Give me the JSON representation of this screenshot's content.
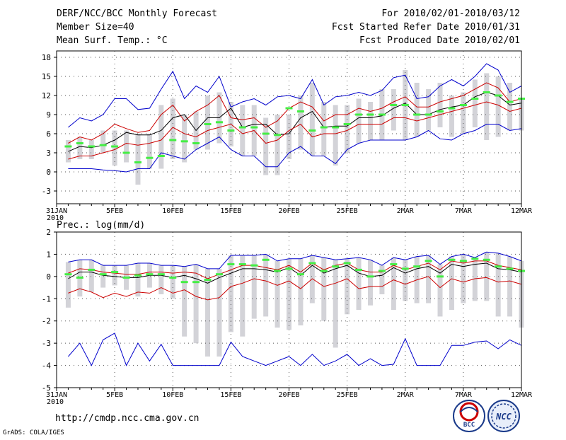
{
  "header": {
    "left": [
      "DERF/NCC/BCC Monthly Forecast",
      "Member Size=40",
      "Mean Surf. Temp.: °C"
    ],
    "right": [
      "For 2010/02/01-2010/03/12",
      "Fcst Started Refer Date 2010/01/31",
      "Fcst Produced Date 2010/02/01"
    ]
  },
  "footer": {
    "url": "http://cmdp.ncc.cma.gov.cn",
    "credit": "GrADS: COLA/IGES",
    "logo1": "BCC",
    "logo2": "NCC"
  },
  "chart_data": [
    {
      "type": "line",
      "title": "Mean Surf. Temp.: °C",
      "xlabel": "",
      "ylabel": "",
      "ylim": [
        -5,
        19
      ],
      "yticks": [
        -3,
        0,
        3,
        6,
        9,
        12,
        15,
        18
      ],
      "xticks": [
        {
          "day": 0,
          "label": "31JAN"
        },
        {
          "day": 5,
          "label": "5FEB"
        },
        {
          "day": 10,
          "label": "10FEB"
        },
        {
          "day": 15,
          "label": "15FEB"
        },
        {
          "day": 20,
          "label": "20FEB"
        },
        {
          "day": 25,
          "label": "25FEB"
        },
        {
          "day": 30,
          "label": "2MAR"
        },
        {
          "day": 35,
          "label": "7MAR"
        },
        {
          "day": 40,
          "label": "12MAR"
        }
      ],
      "year_label": "2010",
      "days": [
        1,
        2,
        3,
        4,
        5,
        6,
        7,
        8,
        9,
        10,
        11,
        12,
        13,
        14,
        15,
        16,
        17,
        18,
        19,
        20,
        21,
        22,
        23,
        24,
        25,
        26,
        27,
        28,
        29,
        30,
        31,
        32,
        33,
        34,
        35,
        36,
        37,
        38,
        39,
        40
      ],
      "series": [
        {
          "name": "max",
          "color": "#0000cc",
          "values": [
            7,
            8.5,
            8,
            9,
            11.5,
            11.5,
            9.8,
            10,
            13,
            15.8,
            11.5,
            13.5,
            12.5,
            15,
            10.2,
            11,
            11.5,
            10.5,
            11.8,
            12,
            11.5,
            14.5,
            10.5,
            11.8,
            12,
            12.5,
            12,
            12.8,
            14.8,
            15.2,
            11.5,
            11.8,
            13.5,
            14.5,
            13.5,
            15,
            17,
            16,
            12.5,
            13.5
          ]
        },
        {
          "name": "upper",
          "color": "#cc0000",
          "values": [
            4.5,
            5.5,
            5,
            6,
            7.5,
            6.8,
            6.2,
            6.5,
            9,
            10.5,
            8,
            9.5,
            10.5,
            12,
            8.5,
            8.2,
            8.5,
            7,
            8,
            10,
            11,
            10.2,
            8,
            9,
            9,
            10,
            9.5,
            10,
            11,
            11.8,
            10.2,
            10.2,
            11,
            11.5,
            12,
            13,
            14,
            13.2,
            11,
            11.5
          ]
        },
        {
          "name": "mean",
          "color": "#000000",
          "values": [
            3.2,
            4,
            3.8,
            4.2,
            5,
            6.2,
            5.8,
            5.8,
            6.5,
            8.5,
            9,
            6.5,
            8.5,
            8.5,
            10,
            7,
            7.5,
            7.5,
            5.8,
            6,
            8.5,
            9.5,
            7,
            7.2,
            7.2,
            8.5,
            8.5,
            8.8,
            10,
            10.8,
            9,
            9,
            9.8,
            10.2,
            10.5,
            11.8,
            12.5,
            12,
            10.5,
            10.8
          ]
        },
        {
          "name": "lower",
          "color": "#cc0000",
          "values": [
            2,
            2.5,
            2.5,
            3,
            3.5,
            4.5,
            4.2,
            4.5,
            5,
            7,
            6,
            5.5,
            6.5,
            7,
            7.5,
            6,
            6.5,
            4.5,
            5,
            6.5,
            7.5,
            5.5,
            6,
            6,
            6.5,
            7.5,
            7.5,
            7.5,
            8.5,
            8.5,
            8,
            8.5,
            9,
            9.5,
            10,
            10.5,
            11,
            10.5,
            9.5,
            10
          ]
        },
        {
          "name": "min",
          "color": "#0000cc",
          "values": [
            0.5,
            0.5,
            0.5,
            0.3,
            0.2,
            0,
            0.5,
            0.5,
            3,
            2.5,
            2,
            3.5,
            4.5,
            5.5,
            3.5,
            2.5,
            2.5,
            0.8,
            0.8,
            3,
            4,
            2.5,
            2.5,
            1.3,
            3.5,
            4.5,
            5,
            5,
            5,
            5,
            5.5,
            6.5,
            5.2,
            5,
            6,
            6.5,
            7.5,
            7.5,
            6.5,
            6.8
          ]
        }
      ],
      "bars": {
        "color": "#d3d3d8",
        "low": [
          1.5,
          2,
          2,
          3,
          1,
          1.5,
          -2,
          0.5,
          0.5,
          2,
          1.5,
          3.5,
          3.5,
          4.5,
          4,
          2.5,
          2.5,
          -0.5,
          -0.5,
          2,
          3.5,
          2.5,
          2.5,
          1,
          3,
          4.5,
          5,
          5,
          6.5,
          5,
          5.5,
          6.5,
          7,
          5.5,
          6,
          7,
          5,
          5.5,
          6.5,
          6.5
        ],
        "high": [
          5,
          5.5,
          5,
          6.5,
          6.5,
          6.5,
          6,
          6,
          10.5,
          11.5,
          9,
          9.5,
          12,
          12.5,
          11,
          10.5,
          10.5,
          8.5,
          9,
          9,
          12,
          14,
          11,
          10.5,
          10.5,
          11.5,
          11,
          13,
          13,
          16,
          14,
          13,
          14,
          12,
          12.5,
          14.5,
          15.5,
          15,
          14,
          11.5
        ]
      },
      "obs": {
        "color": "#44ee44",
        "values": [
          4,
          4.5,
          4,
          4.2,
          4,
          3,
          1.5,
          2.2,
          2.5,
          5,
          4.8,
          4.5,
          7.5,
          7.8,
          6.5,
          7,
          7,
          6,
          5.8,
          10,
          9.5,
          6.5,
          7,
          7,
          7.5,
          9,
          9,
          9,
          10.5,
          10.5,
          9,
          9,
          9.5,
          10,
          10.5,
          11.5,
          12.5,
          12,
          11,
          11.5
        ]
      }
    },
    {
      "type": "line",
      "title": "Prec.: log(mm/d)",
      "xlabel": "",
      "ylabel": "",
      "ylim": [
        -5,
        2
      ],
      "yticks": [
        -5,
        -4,
        -3,
        -2,
        -1,
        0,
        1,
        2
      ],
      "xticks": [
        {
          "day": 0,
          "label": "31JAN"
        },
        {
          "day": 5,
          "label": "5FEB"
        },
        {
          "day": 10,
          "label": "10FEB"
        },
        {
          "day": 15,
          "label": "15FEB"
        },
        {
          "day": 20,
          "label": "20FEB"
        },
        {
          "day": 25,
          "label": "25FEB"
        },
        {
          "day": 30,
          "label": "2MAR"
        },
        {
          "day": 35,
          "label": "7MAR"
        },
        {
          "day": 40,
          "label": "12MAR"
        }
      ],
      "year_label": "2010",
      "days": [
        1,
        2,
        3,
        4,
        5,
        6,
        7,
        8,
        9,
        10,
        11,
        12,
        13,
        14,
        15,
        16,
        17,
        18,
        19,
        20,
        21,
        22,
        23,
        24,
        25,
        26,
        27,
        28,
        29,
        30,
        31,
        32,
        33,
        34,
        35,
        36,
        37,
        38,
        39,
        40
      ],
      "series": [
        {
          "name": "max",
          "color": "#0000cc",
          "values": [
            0.65,
            0.75,
            0.75,
            0.5,
            0.5,
            0.5,
            0.6,
            0.6,
            0.5,
            0.5,
            0.45,
            0.55,
            0.35,
            0.35,
            0.95,
            0.95,
            0.95,
            1.0,
            0.7,
            0.8,
            0.8,
            0.95,
            0.85,
            0.75,
            0.8,
            0.85,
            0.75,
            0.5,
            0.85,
            0.75,
            0.9,
            0.95,
            0.55,
            0.9,
            1.0,
            0.85,
            1.1,
            1.05,
            0.9,
            0.7
          ]
        },
        {
          "name": "upper",
          "color": "#cc0000",
          "values": [
            0.15,
            0.35,
            0.3,
            0.2,
            0.15,
            0.1,
            0.1,
            0.2,
            0.2,
            0.15,
            0.2,
            0.15,
            -0.1,
            0.1,
            0.3,
            0.5,
            0.5,
            0.4,
            0.3,
            0.5,
            0.2,
            0.6,
            0.3,
            0.5,
            0.6,
            0.3,
            0.2,
            0.2,
            0.5,
            0.3,
            0.45,
            0.6,
            0.3,
            0.7,
            0.6,
            0.7,
            0.7,
            0.5,
            0.4,
            0.3
          ]
        },
        {
          "name": "mean",
          "color": "#000000",
          "values": [
            -0.1,
            0.2,
            0.2,
            0.05,
            0.0,
            -0.05,
            -0.05,
            0.05,
            0.05,
            -0.05,
            0.05,
            -0.1,
            -0.3,
            -0.05,
            0.15,
            0.35,
            0.35,
            0.3,
            0.2,
            0.4,
            0.05,
            0.5,
            0.15,
            0.35,
            0.5,
            0.15,
            0.0,
            0.05,
            0.4,
            0.15,
            0.35,
            0.45,
            0.15,
            0.55,
            0.45,
            0.55,
            0.6,
            0.35,
            0.3,
            0.2
          ]
        },
        {
          "name": "lower",
          "color": "#cc0000",
          "values": [
            -0.75,
            -0.55,
            -0.7,
            -0.95,
            -0.75,
            -0.9,
            -0.7,
            -0.75,
            -0.5,
            -0.75,
            -0.6,
            -0.9,
            -1.05,
            -0.95,
            -0.45,
            -0.3,
            -0.1,
            -0.2,
            -0.4,
            -0.2,
            -0.55,
            -0.1,
            -0.45,
            -0.3,
            -0.1,
            -0.55,
            -0.45,
            -0.45,
            -0.15,
            -0.35,
            -0.15,
            0.0,
            -0.5,
            -0.1,
            -0.25,
            -0.1,
            -0.05,
            -0.25,
            -0.2,
            -0.35
          ]
        },
        {
          "name": "min",
          "color": "#0000cc",
          "values": [
            -3.6,
            -3.0,
            -4.0,
            -2.85,
            -2.55,
            -4.0,
            -3.0,
            -3.8,
            -3.05,
            -4.0,
            -4.0,
            -4.0,
            -4.0,
            -4.0,
            -2.95,
            -3.6,
            -3.8,
            -4.0,
            -3.8,
            -3.6,
            -4.0,
            -3.5,
            -4.0,
            -3.8,
            -3.5,
            -4.0,
            -3.7,
            -4.0,
            -3.95,
            -2.8,
            -4.0,
            -4.0,
            -4.0,
            -3.1,
            -3.1,
            -2.95,
            -2.9,
            -3.25,
            -2.85,
            -3.1
          ]
        }
      ],
      "bars": {
        "color": "#d3d3d8",
        "low": [
          -1.4,
          -0.9,
          -0.7,
          -0.5,
          -0.4,
          -0.6,
          -0.9,
          -0.5,
          -0.8,
          -1.0,
          -2.7,
          -3.0,
          -3.6,
          -3.6,
          -2.5,
          -2.7,
          -1.9,
          -1.8,
          -2.3,
          -2.4,
          -2.2,
          -1.2,
          -2.0,
          -3.2,
          -1.7,
          -1.5,
          -1.3,
          -0.8,
          -1.5,
          -1.1,
          -1.2,
          -1.2,
          -1.8,
          -1.5,
          -1.2,
          -1.1,
          -1.1,
          -1.8,
          -1.8,
          -2.3
        ]
      },
      "obs": {
        "color": "#44ee44",
        "values": [
          0.1,
          -0.05,
          0.3,
          0.1,
          0.2,
          -0.05,
          0.05,
          0.1,
          0.1,
          -0.05,
          -0.25,
          -0.25,
          -0.15,
          0.1,
          0.55,
          0.55,
          0.5,
          0.75,
          0.25,
          0.35,
          0.1,
          0.6,
          0.25,
          0.45,
          0.6,
          0.3,
          0.0,
          0.25,
          0.55,
          0.35,
          0.45,
          0.7,
          0.0,
          0.75,
          0.7,
          0.8,
          0.75,
          0.45,
          0.35,
          0.25
        ]
      }
    }
  ]
}
